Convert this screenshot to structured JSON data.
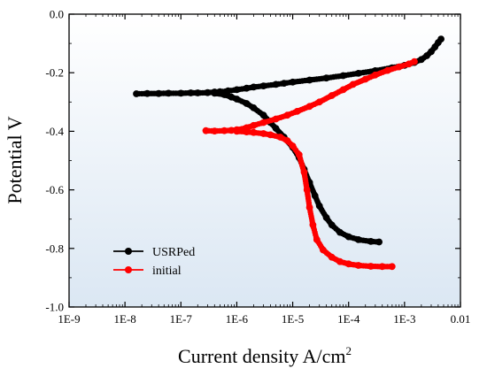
{
  "chart_data": {
    "type": "line",
    "title": "",
    "xlabel": "Current density A/cm",
    "xlabel_sup": "2",
    "ylabel": "Potential V",
    "xscale": "log",
    "xlim": [
      1e-09,
      0.01
    ],
    "ylim": [
      -1.0,
      0.0
    ],
    "x_tick_values": [
      1e-09,
      1e-08,
      1e-07,
      1e-06,
      1e-05,
      0.0001,
      0.001,
      0.01
    ],
    "x_tick_labels": [
      "1E-9",
      "1E-8",
      "1E-7",
      "1E-6",
      "1E-5",
      "1E-4",
      "1E-3",
      "0.01"
    ],
    "y_tick_values": [
      0.0,
      -0.2,
      -0.4,
      -0.6,
      -0.8,
      -1.0
    ],
    "y_tick_labels": [
      "0.0",
      "-0.2",
      "-0.4",
      "-0.6",
      "-0.8",
      "-1.0"
    ],
    "grid": false,
    "background_gradient": [
      "#ffffff",
      "#dbe7f3"
    ],
    "legend_position": "bottom-left",
    "series": [
      {
        "name": "USRPed",
        "color": "#000000",
        "points": [
          [
            1.6e-08,
            -0.272
          ],
          [
            2.5e-08,
            -0.271
          ],
          [
            4e-08,
            -0.271
          ],
          [
            6e-08,
            -0.27
          ],
          [
            1e-07,
            -0.27
          ],
          [
            1.5e-07,
            -0.269
          ],
          [
            2e-07,
            -0.269
          ],
          [
            3e-07,
            -0.268
          ],
          [
            4e-07,
            -0.266
          ],
          [
            5e-07,
            -0.265
          ],
          [
            7e-07,
            -0.262
          ],
          [
            1e-06,
            -0.258
          ],
          [
            1.5e-06,
            -0.253
          ],
          [
            2e-06,
            -0.249
          ],
          [
            3e-06,
            -0.245
          ],
          [
            5e-06,
            -0.24
          ],
          [
            7e-06,
            -0.236
          ],
          [
            1e-05,
            -0.232
          ],
          [
            2e-05,
            -0.225
          ],
          [
            4e-05,
            -0.218
          ],
          [
            8e-05,
            -0.21
          ],
          [
            0.00015,
            -0.202
          ],
          [
            0.0003,
            -0.193
          ],
          [
            0.0006,
            -0.183
          ],
          [
            0.001,
            -0.175
          ],
          [
            0.0015,
            -0.165
          ],
          [
            0.002,
            -0.155
          ],
          [
            0.0025,
            -0.142
          ],
          [
            0.003,
            -0.128
          ],
          [
            0.0035,
            -0.112
          ],
          [
            0.004,
            -0.097
          ],
          [
            0.0045,
            -0.085
          ],
          [
            4e-07,
            -0.27
          ],
          [
            6e-07,
            -0.275
          ],
          [
            8e-07,
            -0.283
          ],
          [
            1e-06,
            -0.29
          ],
          [
            1.5e-06,
            -0.305
          ],
          [
            2e-06,
            -0.32
          ],
          [
            3e-06,
            -0.345
          ],
          [
            4e-06,
            -0.37
          ],
          [
            5e-06,
            -0.39
          ],
          [
            7e-06,
            -0.42
          ],
          [
            1e-05,
            -0.455
          ],
          [
            1.3e-05,
            -0.49
          ],
          [
            1.6e-05,
            -0.53
          ],
          [
            2e-05,
            -0.575
          ],
          [
            2.5e-05,
            -0.62
          ],
          [
            3e-05,
            -0.655
          ],
          [
            4e-05,
            -0.695
          ],
          [
            5e-05,
            -0.72
          ],
          [
            7e-05,
            -0.745
          ],
          [
            0.0001,
            -0.76
          ],
          [
            0.00015,
            -0.77
          ],
          [
            0.00025,
            -0.776
          ],
          [
            0.00035,
            -0.778
          ]
        ]
      },
      {
        "name": "initial",
        "color": "#ff0000",
        "points": [
          [
            2.8e-07,
            -0.398
          ],
          [
            4e-07,
            -0.399
          ],
          [
            6e-07,
            -0.398
          ],
          [
            8e-07,
            -0.397
          ],
          [
            1e-06,
            -0.395
          ],
          [
            1.5e-06,
            -0.388
          ],
          [
            2e-06,
            -0.38
          ],
          [
            3e-06,
            -0.37
          ],
          [
            5e-06,
            -0.358
          ],
          [
            8e-06,
            -0.345
          ],
          [
            1.2e-05,
            -0.332
          ],
          [
            2e-05,
            -0.315
          ],
          [
            3e-05,
            -0.3
          ],
          [
            5e-05,
            -0.278
          ],
          [
            8e-05,
            -0.258
          ],
          [
            0.00012,
            -0.24
          ],
          [
            0.0002,
            -0.222
          ],
          [
            0.0003,
            -0.208
          ],
          [
            0.0005,
            -0.192
          ],
          [
            0.0008,
            -0.18
          ],
          [
            0.0012,
            -0.17
          ],
          [
            0.0015,
            -0.162
          ],
          [
            1e-06,
            -0.4
          ],
          [
            1.5e-06,
            -0.402
          ],
          [
            2e-06,
            -0.404
          ],
          [
            3e-06,
            -0.408
          ],
          [
            4e-06,
            -0.412
          ],
          [
            6e-06,
            -0.42
          ],
          [
            8e-06,
            -0.432
          ],
          [
            1e-05,
            -0.45
          ],
          [
            1.3e-05,
            -0.48
          ],
          [
            1.6e-05,
            -0.54
          ],
          [
            1.8e-05,
            -0.6
          ],
          [
            2e-05,
            -0.66
          ],
          [
            2.3e-05,
            -0.72
          ],
          [
            2.7e-05,
            -0.77
          ],
          [
            3.5e-05,
            -0.805
          ],
          [
            5e-05,
            -0.83
          ],
          [
            7e-05,
            -0.845
          ],
          [
            0.0001,
            -0.853
          ],
          [
            0.00015,
            -0.858
          ],
          [
            0.00025,
            -0.861
          ],
          [
            0.0004,
            -0.862
          ],
          [
            0.0006,
            -0.862
          ]
        ]
      }
    ]
  }
}
